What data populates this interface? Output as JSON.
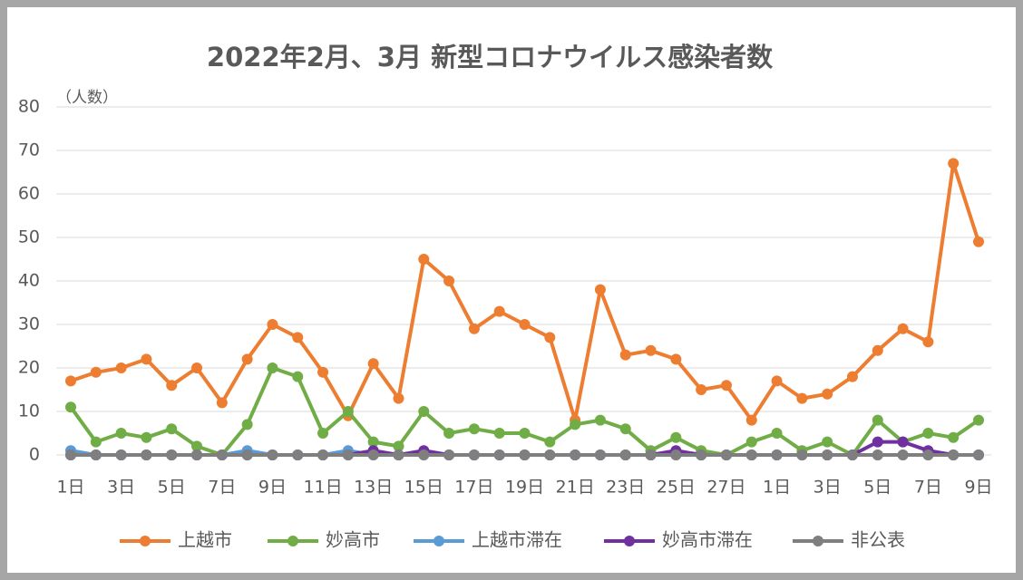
{
  "chart_data": {
    "type": "line",
    "title": "2022年2月、3月 新型コロナウイルス感染者数",
    "y_label": "（人数）",
    "categories": [
      "1日",
      null,
      "3日",
      null,
      "5日",
      null,
      "7日",
      null,
      "9日",
      null,
      "11日",
      null,
      "13日",
      null,
      "15日",
      null,
      "17日",
      null,
      "19日",
      null,
      "21日",
      null,
      "23日",
      null,
      "25日",
      null,
      "27日",
      null,
      "1日",
      null,
      "3日",
      null,
      "5日",
      null,
      "7日",
      null,
      "9日"
    ],
    "series": [
      {
        "name": "上越市",
        "color": "#ed7d31",
        "values": [
          17,
          19,
          20,
          22,
          16,
          20,
          12,
          22,
          30,
          27,
          19,
          9,
          21,
          13,
          45,
          40,
          29,
          33,
          30,
          27,
          8,
          38,
          23,
          24,
          22,
          15,
          16,
          8,
          17,
          13,
          14,
          18,
          24,
          29,
          26,
          67,
          49
        ]
      },
      {
        "name": "妙高市",
        "color": "#70ad47",
        "values": [
          11,
          3,
          5,
          4,
          6,
          2,
          0,
          7,
          20,
          18,
          5,
          10,
          3,
          2,
          10,
          5,
          6,
          5,
          5,
          3,
          7,
          8,
          6,
          1,
          4,
          1,
          0,
          3,
          5,
          1,
          3,
          0,
          8,
          3,
          5,
          4,
          8
        ]
      },
      {
        "name": "上越市滞在",
        "color": "#5b9bd5",
        "values": [
          1,
          0,
          0,
          0,
          0,
          0,
          0,
          1,
          0,
          0,
          0,
          1,
          0,
          0,
          0,
          0,
          0,
          0,
          0,
          0,
          0,
          0,
          0,
          0,
          0,
          0,
          0,
          0,
          0,
          0,
          0,
          0,
          0,
          0,
          0,
          0,
          0
        ]
      },
      {
        "name": "妙高市滞在",
        "color": "#7030a0",
        "values": [
          0,
          0,
          0,
          0,
          0,
          0,
          0,
          0,
          0,
          0,
          0,
          0,
          1,
          0,
          1,
          0,
          0,
          0,
          0,
          0,
          0,
          0,
          0,
          0,
          1,
          0,
          0,
          0,
          0,
          0,
          0,
          0,
          3,
          3,
          1,
          0,
          0
        ]
      },
      {
        "name": "非公表",
        "color": "#7f7f7f",
        "values": [
          0,
          0,
          0,
          0,
          0,
          0,
          0,
          0,
          0,
          0,
          0,
          0,
          0,
          0,
          0,
          0,
          0,
          0,
          0,
          0,
          0,
          0,
          0,
          0,
          0,
          0,
          0,
          0,
          0,
          0,
          0,
          0,
          0,
          0,
          0,
          0,
          0
        ]
      }
    ],
    "ylim": [
      0,
      80
    ],
    "yticks": [
      0,
      10,
      20,
      30,
      40,
      50,
      60,
      70,
      80
    ],
    "grid": true
  }
}
